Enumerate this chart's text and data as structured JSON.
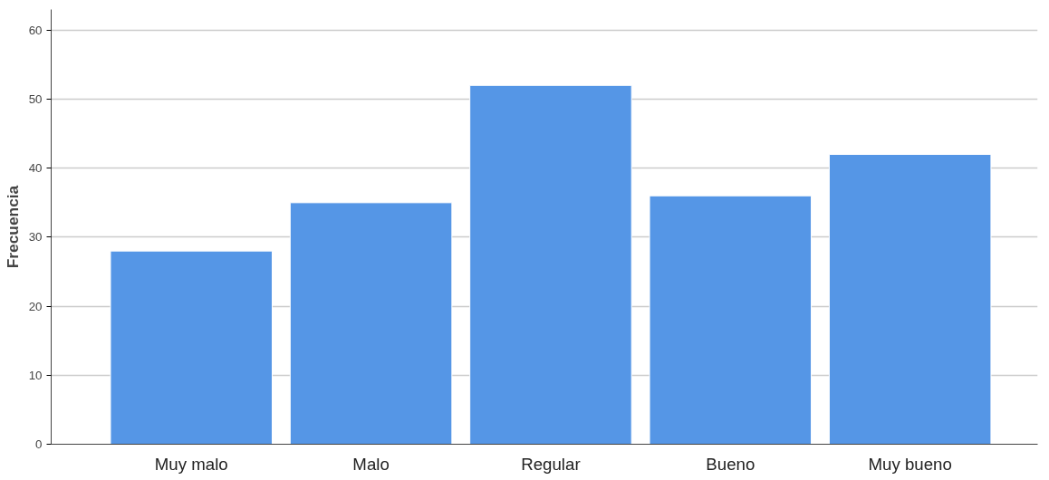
{
  "chart_data": {
    "type": "bar",
    "ylabel": "Frecuencia",
    "categories": [
      "Muy malo",
      "Malo",
      "Regular",
      "Bueno",
      "Muy bueno"
    ],
    "values": [
      28,
      35,
      52,
      36,
      42
    ],
    "color": "#5596e6",
    "ylim": [
      0,
      63
    ],
    "yticks": [
      0,
      10,
      20,
      30,
      40,
      50,
      60
    ],
    "grid": "y"
  }
}
